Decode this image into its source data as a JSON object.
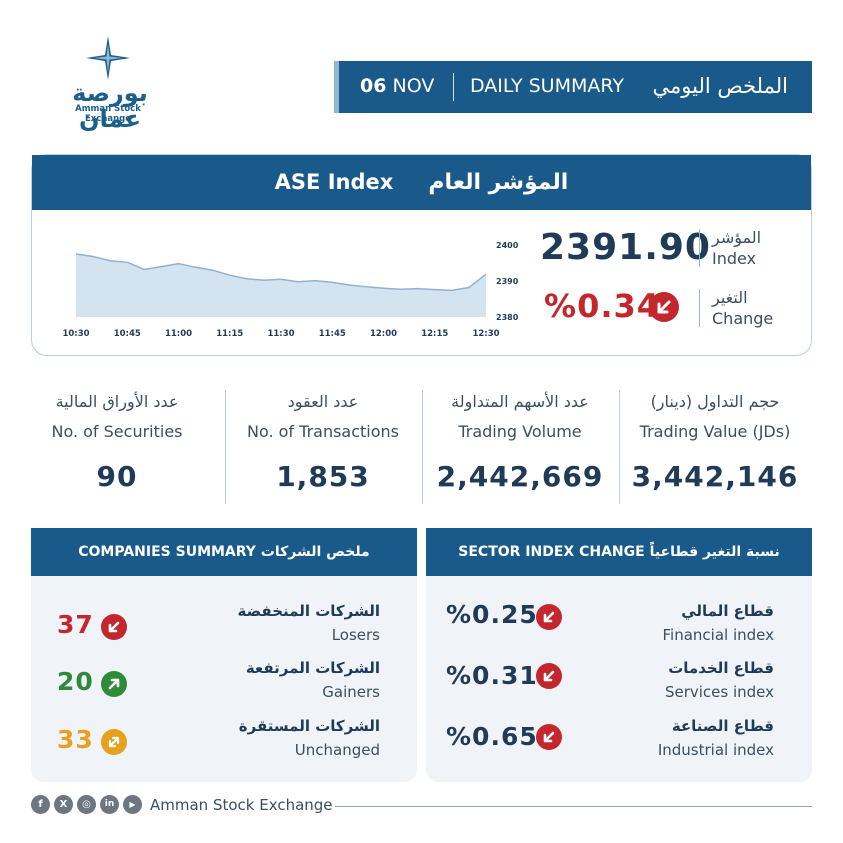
{
  "logo": {
    "arabic": "بورصة عمان",
    "english": "Amman Stock Exchange"
  },
  "header": {
    "date_day": "06",
    "date_month": "NOV",
    "title_en": "DAILY SUMMARY",
    "title_ar": "الملخص اليومي"
  },
  "index": {
    "title_en": "ASE Index",
    "title_ar": "المؤشر العام",
    "value": "2391.90",
    "change": "%0.34",
    "value_label_ar": "المؤشر",
    "value_label_en": "Index",
    "change_label_ar": "التغير",
    "change_label_en": "Change"
  },
  "chart_data": {
    "type": "area",
    "x": [
      "10:30",
      "10:35",
      "10:40",
      "10:45",
      "10:50",
      "10:55",
      "11:00",
      "11:05",
      "11:10",
      "11:15",
      "11:20",
      "11:25",
      "11:30",
      "11:35",
      "11:40",
      "11:45",
      "11:50",
      "11:55",
      "12:00",
      "12:05",
      "12:10",
      "12:15",
      "12:20",
      "12:25",
      "12:30"
    ],
    "values": [
      2397.5,
      2396.8,
      2395.6,
      2395.2,
      2393.2,
      2394.0,
      2394.8,
      2393.8,
      2393.0,
      2391.6,
      2390.6,
      2390.2,
      2390.5,
      2389.8,
      2390.1,
      2389.6,
      2388.9,
      2388.4,
      2388.0,
      2387.7,
      2387.9,
      2387.6,
      2387.4,
      2388.2,
      2391.9
    ],
    "x_ticks": [
      "10:30",
      "10:45",
      "11:00",
      "11:15",
      "11:30",
      "11:45",
      "12:00",
      "12:15",
      "12:30"
    ],
    "y_ticks": [
      2380,
      2390,
      2400
    ],
    "ylim": [
      2380,
      2400
    ],
    "fill_color": "#d4e3f0",
    "line_color": "#8eb3d2"
  },
  "stats": [
    {
      "ar": "عدد الأوراق المالية",
      "en": "No. of Securities",
      "value": "90"
    },
    {
      "ar": "عدد العقود",
      "en": "No. of Transactions",
      "value": "1,853"
    },
    {
      "ar": "عدد الأسهم المتداولة",
      "en": "Trading Volume",
      "value": "2,442,669"
    },
    {
      "ar": "حجم التداول (دينار)",
      "en": "Trading Value (JDs)",
      "value": "3,442,146"
    }
  ],
  "companies": {
    "title": "COMPANIES SUMMARY ملخص الشركات",
    "rows": [
      {
        "ar": "الشركات المنخفضة",
        "en": "Losers",
        "value": "37",
        "color": "#c4262e",
        "icon": "arrow-down-left-icon"
      },
      {
        "ar": "الشركات المرتفعة",
        "en": "Gainers",
        "value": "20",
        "color": "#2e8b3a",
        "icon": "arrow-up-right-icon"
      },
      {
        "ar": "الشركات المستقرة",
        "en": "Unchanged",
        "value": "33",
        "color": "#e8a020",
        "icon": "arrow-diagonal-both-icon"
      }
    ]
  },
  "sectors": {
    "title": "SECTOR INDEX CHANGE نسبة التغير قطاعياً",
    "rows": [
      {
        "ar": "قطاع المالي",
        "en": "Financial index",
        "value": "%0.25"
      },
      {
        "ar": "قطاع الخدمات",
        "en": "Services index",
        "value": "%0.31"
      },
      {
        "ar": "قطاع الصناعة",
        "en": "Industrial index",
        "value": "%0.65"
      }
    ]
  },
  "footer": {
    "brand": "Amman Stock Exchange",
    "social": [
      "f",
      "X",
      "◎",
      "in",
      "▶"
    ]
  },
  "colors": {
    "primary": "#195a8a",
    "down": "#c4262e",
    "up": "#2e8b3a",
    "flat": "#e8a020"
  }
}
